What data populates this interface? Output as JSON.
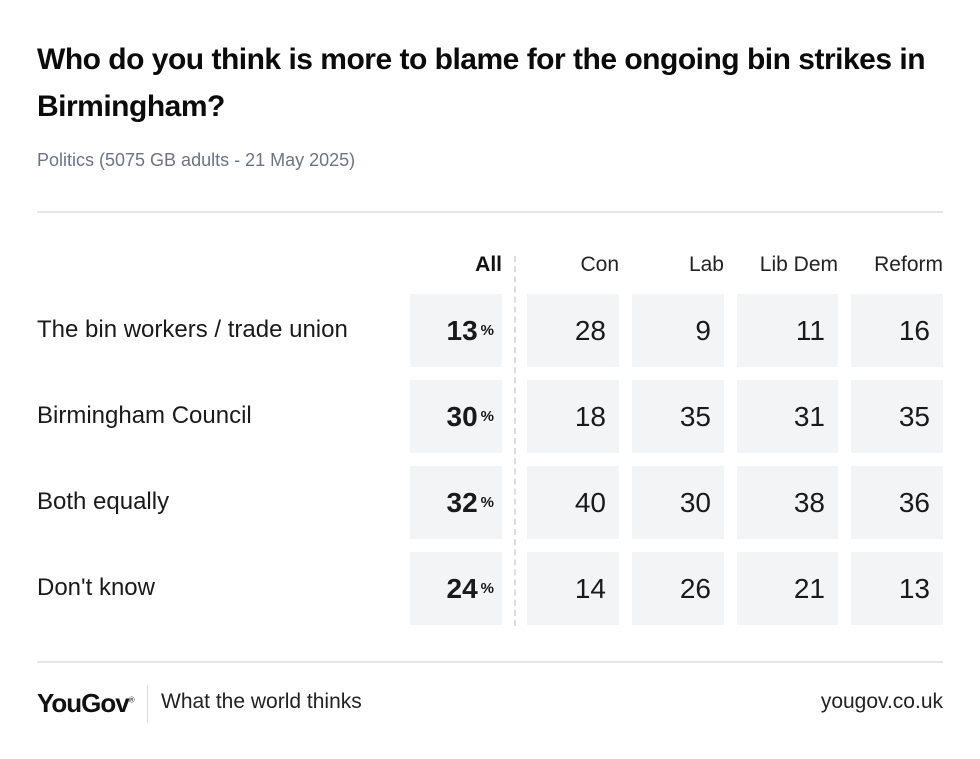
{
  "header": {
    "title": "Who do you think is more to blame for the ongoing bin strikes in Birmingham?",
    "subtitle": "Politics (5075 GB adults - 21 May 2025)"
  },
  "chart_data": {
    "type": "table",
    "title": "Who do you think is more to blame for the ongoing bin strikes in Birmingham?",
    "subtitle": "Politics (5075 GB adults - 21 May 2025)",
    "columns": [
      "All",
      "Con",
      "Lab",
      "Lib Dem",
      "Reform"
    ],
    "unit_symbol": "%",
    "rows": [
      {
        "label": "The bin workers / trade union",
        "values": [
          13,
          28,
          9,
          11,
          16
        ]
      },
      {
        "label": "Birmingham Council",
        "values": [
          30,
          18,
          35,
          31,
          35
        ]
      },
      {
        "label": "Both equally",
        "values": [
          32,
          40,
          30,
          38,
          36
        ]
      },
      {
        "label": "Don't know",
        "values": [
          24,
          14,
          26,
          21,
          13
        ]
      }
    ]
  },
  "footer": {
    "logo": "YouGov",
    "logo_mark": "®",
    "tagline": "What the world thinks",
    "url": "yougov.co.uk"
  },
  "colors": {
    "cell_background": "#f3f4f6",
    "subtitle": "#6b7385",
    "rule": "#e6e6e8"
  }
}
